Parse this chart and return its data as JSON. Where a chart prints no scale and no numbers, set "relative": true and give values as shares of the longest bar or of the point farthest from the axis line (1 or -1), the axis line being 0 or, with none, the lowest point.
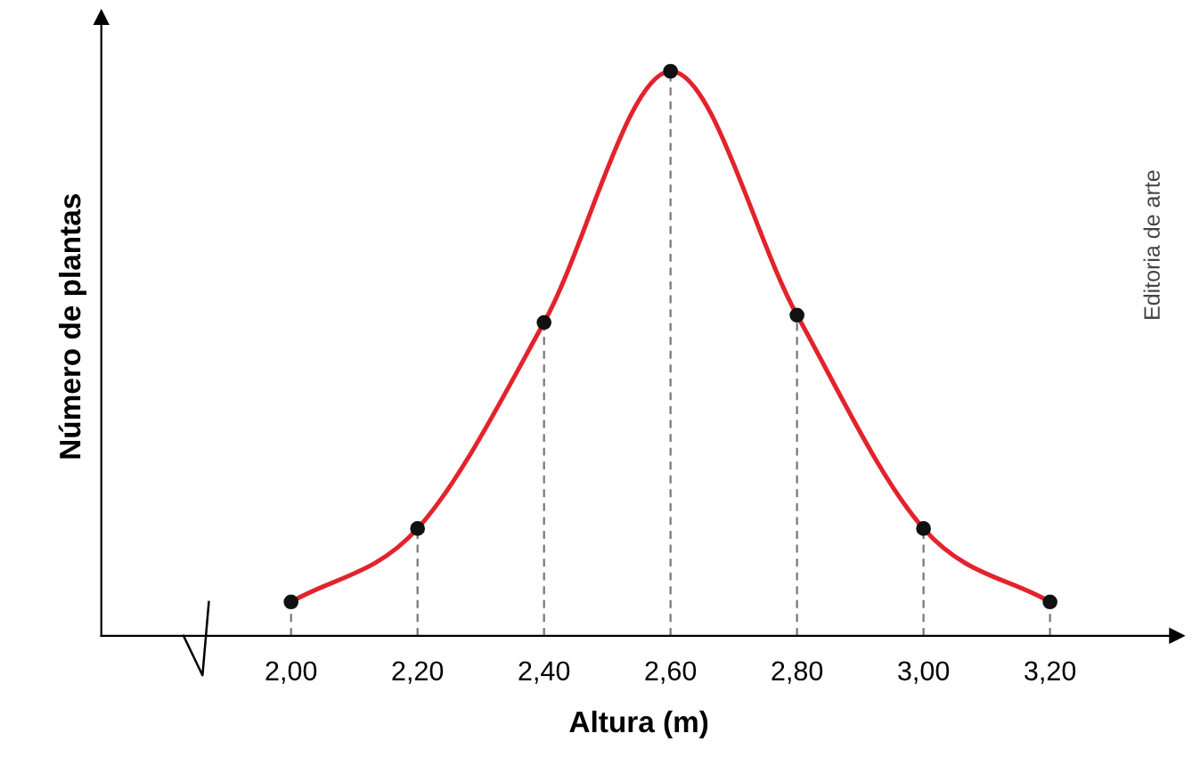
{
  "chart_data": {
    "type": "line",
    "relative": true,
    "xlabel": "Altura (m)",
    "ylabel": "Número de plantas",
    "categories": [
      "2,00",
      "2,20",
      "2,40",
      "2,60",
      "2,80",
      "3,00",
      "3,20"
    ],
    "series": [
      {
        "color": "#e3232c",
        "values": [
          0.06,
          0.19,
          0.555,
          1,
          0.568,
          0.19,
          0.06
        ]
      },
      {
        "type": "lollipop",
        "color": "#111111",
        "line_style": "dashed",
        "marker": "circle",
        "values": [
          0.06,
          0.19,
          0.555,
          1,
          0.568,
          0.19,
          0.06
        ]
      }
    ],
    "legend": false,
    "annotations": [
      "Editoria de arte"
    ]
  }
}
